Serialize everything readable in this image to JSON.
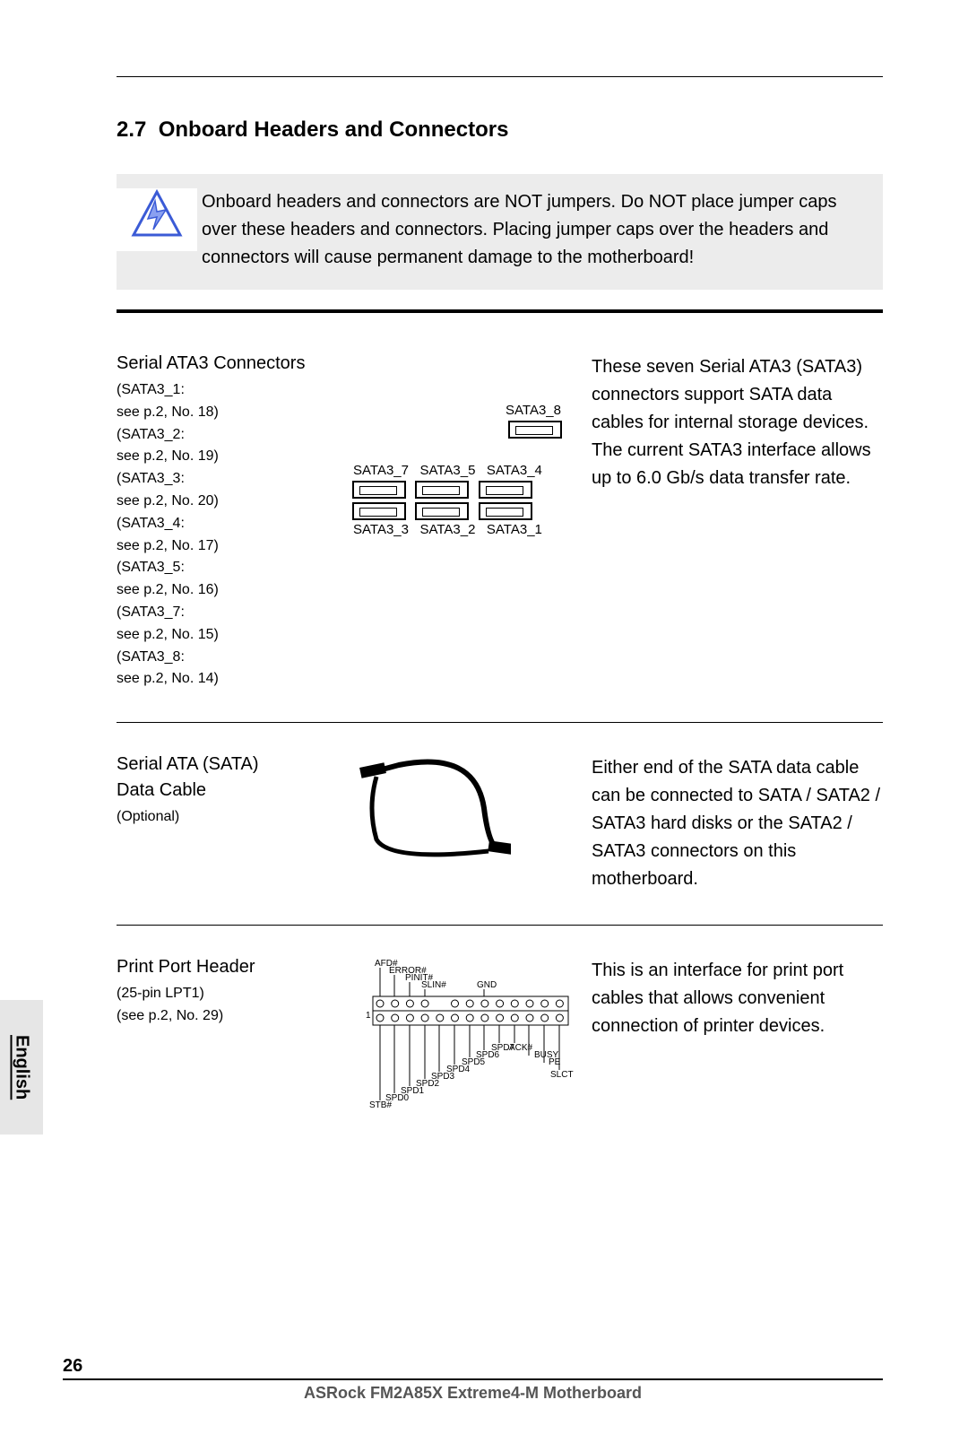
{
  "section": {
    "number": "2.7",
    "title": "Onboard Headers and Connectors"
  },
  "warning": {
    "text": "Onboard headers and connectors are NOT jumpers. Do NOT place jumper caps over these headers and connectors. Placing jumper caps over the headers and connectors will cause permanent damage to the motherboard!",
    "icon_stroke": "#3b5bd6",
    "icon_fill": "#8aa0f0"
  },
  "sata_section": {
    "title": "Serial ATA3 Connectors",
    "refs": [
      "(SATA3_1:",
      "see p.2, No. 18)",
      "(SATA3_2:",
      "see p.2, No. 19)",
      "(SATA3_3:",
      "see p.2, No. 20)",
      "(SATA3_4:",
      "see p.2, No. 17)",
      "(SATA3_5:",
      "see p.2, No. 16)",
      "(SATA3_7:",
      "see p.2, No. 15)",
      "(SATA3_8:",
      "see p.2, No. 14)"
    ],
    "diagram": {
      "top_single": "SATA3_8",
      "top_row": [
        "SATA3_7",
        "SATA3_5",
        "SATA3_4"
      ],
      "bottom_row": [
        "SATA3_3",
        "SATA3_2",
        "SATA3_1"
      ]
    },
    "description": "These seven Serial ATA3 (SATA3) connectors support SATA data cables for internal storage devices. The current SATA3 interface allows up to 6.0 Gb/s data transfer rate."
  },
  "cable_section": {
    "title1": "Serial ATA (SATA)",
    "title2": "Data Cable",
    "sub": "(Optional)",
    "description": "Either end of the SATA data cable can be connected to SATA / SATA2 / SATA3 hard disks or the SATA2 / SATA3 connectors on this motherboard.",
    "cable_color": "#000000"
  },
  "lpt_section": {
    "title": "Print Port Header",
    "sub1": "(25-pin LPT1)",
    "sub2": "(see p.2, No. 29)",
    "description": "This is an interface for print port cables that allows convenient connection of printer devices.",
    "pins_top": [
      "AFD#",
      "ERROR#",
      "PINIT#",
      "SLIN#",
      "",
      "GND",
      "",
      "",
      "",
      "",
      "",
      "",
      ""
    ],
    "pins_bottom": [
      "STB#",
      "SPD0",
      "SPD1",
      "SPD2",
      "SPD3",
      "SPD4",
      "SPD5",
      "SPD6",
      "SPD7",
      "ACK#",
      "BUSY",
      "PE",
      "SLCT"
    ],
    "pin1_label": "1"
  },
  "footer": {
    "page": "26",
    "text": "ASRock  FM2A85X Extreme4-M  Motherboard"
  },
  "language": "English"
}
